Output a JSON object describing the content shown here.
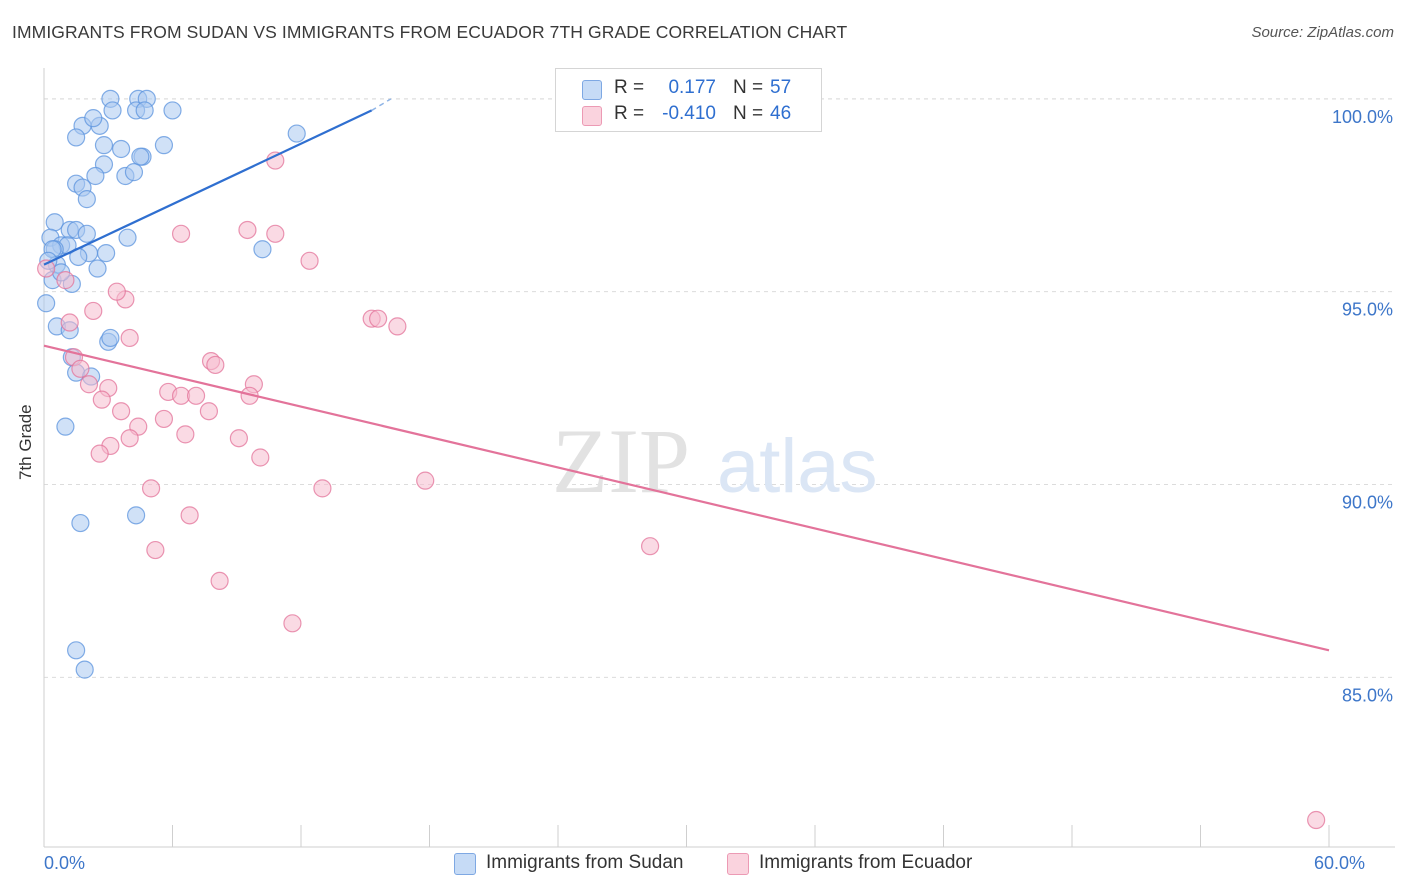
{
  "title": "IMMIGRANTS FROM SUDAN VS IMMIGRANTS FROM ECUADOR 7TH GRADE CORRELATION CHART",
  "source": "Source: ZipAtlas.com",
  "watermark": {
    "zip": "ZIP",
    "atlas": "atlas"
  },
  "legend_stats": [
    {
      "r_label": "R =",
      "r_value": "0.177",
      "n_label": "N =",
      "n_value": "57",
      "color": "#aac8f0"
    },
    {
      "r_label": "R =",
      "r_value": "-0.410",
      "n_label": "N =",
      "n_value": "46",
      "color": "#f6bccd"
    }
  ],
  "bottom_legend": [
    {
      "label": "Immigrants from Sudan",
      "color": "#aac8f0"
    },
    {
      "label": "Immigrants from Ecuador",
      "color": "#f6bccd"
    }
  ],
  "chart_data": {
    "type": "scatter",
    "xlabel": "",
    "ylabel": "7th Grade",
    "xlim": [
      0,
      60
    ],
    "ylim": [
      80.6,
      100.8
    ],
    "x_tick_labels": [
      {
        "value": 0,
        "label": "0.0%"
      },
      {
        "value": 60,
        "label": "60.0%"
      }
    ],
    "y_tick_labels": [
      {
        "value": 100,
        "label": "100.0%"
      },
      {
        "value": 95,
        "label": "95.0%"
      },
      {
        "value": 90,
        "label": "90.0%"
      },
      {
        "value": 85,
        "label": "85.0%"
      }
    ],
    "grid": true,
    "series": [
      {
        "name": "Immigrants from Sudan",
        "color": "#5b93dd",
        "fill": "#aac8f0",
        "trend": {
          "x": [
            0,
            15.3
          ],
          "y": [
            95.7,
            99.7
          ],
          "dash_to": [
            16.2,
            100
          ]
        },
        "points": [
          [
            3.1,
            100
          ],
          [
            4.4,
            100
          ],
          [
            4.8,
            100
          ],
          [
            3.2,
            99.7
          ],
          [
            2.6,
            99.3
          ],
          [
            1.8,
            99.3
          ],
          [
            4.3,
            99.7
          ],
          [
            11.8,
            99.1
          ],
          [
            1.5,
            99
          ],
          [
            2.8,
            98.8
          ],
          [
            3.6,
            98.7
          ],
          [
            5.6,
            98.8
          ],
          [
            4.6,
            98.5
          ],
          [
            4.5,
            98.5
          ],
          [
            2.8,
            98.3
          ],
          [
            3.8,
            98
          ],
          [
            2.4,
            98
          ],
          [
            1.5,
            97.8
          ],
          [
            1.8,
            97.7
          ],
          [
            2,
            97.4
          ],
          [
            0.5,
            96.8
          ],
          [
            0.3,
            96.4
          ],
          [
            1.2,
            96.6
          ],
          [
            1.5,
            96.6
          ],
          [
            2,
            96.5
          ],
          [
            0.8,
            96.2
          ],
          [
            1.1,
            96.2
          ],
          [
            0.5,
            96.1
          ],
          [
            2.1,
            96
          ],
          [
            2.9,
            96
          ],
          [
            10.2,
            96.1
          ],
          [
            0.4,
            96.1
          ],
          [
            0.6,
            95.7
          ],
          [
            0.2,
            95.8
          ],
          [
            0.4,
            95.3
          ],
          [
            1.3,
            95.2
          ],
          [
            0.8,
            95.5
          ],
          [
            0.1,
            94.7
          ],
          [
            0.6,
            94.1
          ],
          [
            1.2,
            94
          ],
          [
            3,
            93.7
          ],
          [
            1.3,
            93.3
          ],
          [
            1.5,
            92.9
          ],
          [
            2.2,
            92.8
          ],
          [
            1,
            91.5
          ],
          [
            1.7,
            89
          ],
          [
            4.3,
            89.2
          ],
          [
            1.5,
            85.7
          ],
          [
            1.9,
            85.2
          ],
          [
            6,
            99.7
          ],
          [
            4.7,
            99.7
          ],
          [
            2.3,
            99.5
          ],
          [
            4.2,
            98.1
          ],
          [
            3.9,
            96.4
          ],
          [
            1.6,
            95.9
          ],
          [
            2.5,
            95.6
          ],
          [
            3.1,
            93.8
          ]
        ]
      },
      {
        "name": "Immigrants from Ecuador",
        "color": "#e3739a",
        "fill": "#f6bccd",
        "trend": {
          "x": [
            0,
            60
          ],
          "y": [
            93.6,
            85.7
          ]
        },
        "points": [
          [
            10.8,
            98.4
          ],
          [
            6.4,
            96.5
          ],
          [
            9.5,
            96.6
          ],
          [
            10.8,
            96.5
          ],
          [
            12.4,
            95.8
          ],
          [
            0.1,
            95.6
          ],
          [
            1,
            95.3
          ],
          [
            3.8,
            94.8
          ],
          [
            2.3,
            94.5
          ],
          [
            15.3,
            94.3
          ],
          [
            15.6,
            94.3
          ],
          [
            16.5,
            94.1
          ],
          [
            1.2,
            94.2
          ],
          [
            4,
            93.8
          ],
          [
            7.8,
            93.2
          ],
          [
            8,
            93.1
          ],
          [
            1.4,
            93.3
          ],
          [
            1.7,
            93
          ],
          [
            2.1,
            92.6
          ],
          [
            3,
            92.5
          ],
          [
            5.8,
            92.4
          ],
          [
            6.4,
            92.3
          ],
          [
            9.8,
            92.6
          ],
          [
            9.6,
            92.3
          ],
          [
            7.1,
            92.3
          ],
          [
            3.6,
            91.9
          ],
          [
            7.7,
            91.9
          ],
          [
            5.6,
            91.7
          ],
          [
            4.4,
            91.5
          ],
          [
            6.6,
            91.3
          ],
          [
            4,
            91.2
          ],
          [
            9.1,
            91.2
          ],
          [
            3.1,
            91
          ],
          [
            2.6,
            90.8
          ],
          [
            10.1,
            90.7
          ],
          [
            5,
            89.9
          ],
          [
            13,
            89.9
          ],
          [
            17.8,
            90.1
          ],
          [
            6.8,
            89.2
          ],
          [
            5.2,
            88.3
          ],
          [
            28.3,
            88.4
          ],
          [
            8.2,
            87.5
          ],
          [
            11.6,
            86.4
          ],
          [
            59.4,
            81.3
          ],
          [
            3.4,
            95
          ],
          [
            2.7,
            92.2
          ]
        ]
      }
    ]
  }
}
